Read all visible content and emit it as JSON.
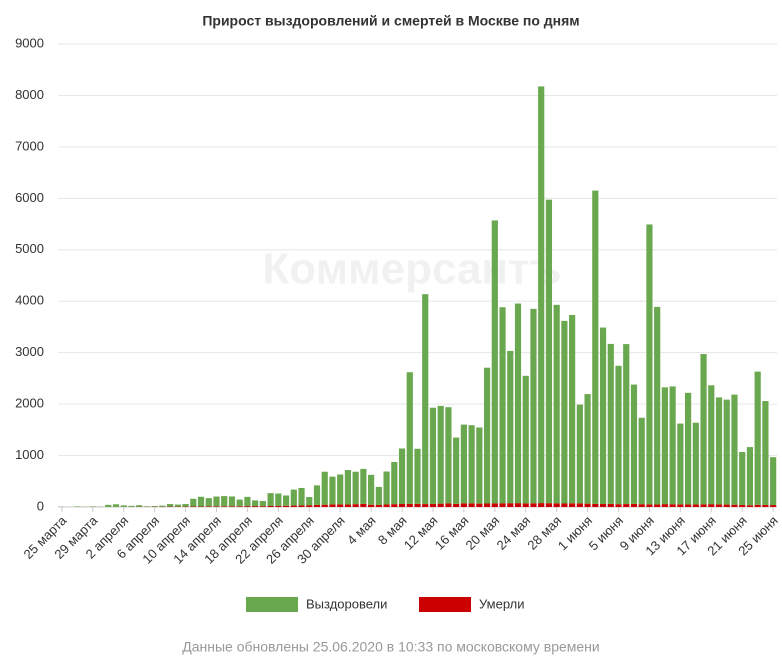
{
  "chart_data": {
    "type": "stacked_bar",
    "title": "Прирост выздоровлений и смертей в Москве по дням",
    "watermark": "Коммерсантъ",
    "note": "Данные обновлены 25.06.2020 в 10:33 по московскому времени",
    "categories": [
      "25 марта",
      null,
      null,
      null,
      "29 марта",
      null,
      null,
      null,
      "2 апреля",
      null,
      null,
      null,
      "6 апреля",
      null,
      null,
      null,
      "10 апреля",
      null,
      null,
      null,
      "14 апреля",
      null,
      null,
      null,
      "18 апреля",
      null,
      null,
      null,
      "22 апреля",
      null,
      null,
      null,
      "26 апреля",
      null,
      null,
      null,
      "30 апреля",
      null,
      null,
      null,
      "4 мая",
      null,
      null,
      null,
      "8 мая",
      null,
      null,
      null,
      "12 мая",
      null,
      null,
      null,
      "16 мая",
      null,
      null,
      null,
      "20 мая",
      null,
      null,
      null,
      "24 мая",
      null,
      null,
      null,
      "28 мая",
      null,
      null,
      null,
      "1 июня",
      null,
      null,
      null,
      "5 июня",
      null,
      null,
      null,
      "9 июня",
      null,
      null,
      null,
      "13 июня",
      null,
      null,
      null,
      "17 июня",
      null,
      null,
      null,
      "21 июня",
      null,
      null,
      null,
      "25 июня"
    ],
    "series": [
      {
        "name": "Выздоровели",
        "color": "#6aa84f",
        "values": [
          5,
          0,
          10,
          5,
          10,
          5,
          40,
          50,
          30,
          20,
          30,
          10,
          15,
          20,
          50,
          40,
          50,
          150,
          190,
          160,
          190,
          200,
          190,
          130,
          180,
          110,
          100,
          250,
          240,
          200,
          310,
          340,
          160,
          380,
          640,
          540,
          580,
          670,
          630,
          680,
          580,
          350,
          640,
          820,
          1080,
          2560,
          1070,
          4080,
          1870,
          1900,
          1870,
          1290,
          1530,
          1520,
          1480,
          2640,
          5500,
          3810,
          2960,
          3880,
          2480,
          3780,
          8100,
          5900,
          3860,
          3550,
          3660,
          1920,
          2130,
          6090,
          3430,
          3110,
          2690,
          3110,
          2320,
          1680,
          5440,
          3840,
          2270,
          2290,
          1570,
          2170,
          1590,
          2920,
          2310,
          2080,
          2040,
          2140,
          1030,
          1130,
          2590,
          2020,
          930
        ]
      },
      {
        "name": "Умерли",
        "color": "#cc0000",
        "values": [
          0,
          0,
          1,
          1,
          2,
          1,
          2,
          3,
          2,
          3,
          5,
          4,
          5,
          6,
          8,
          7,
          8,
          10,
          9,
          12,
          13,
          12,
          15,
          14,
          17,
          18,
          16,
          20,
          22,
          24,
          28,
          30,
          35,
          40,
          45,
          50,
          52,
          48,
          55,
          60,
          45,
          40,
          50,
          55,
          58,
          60,
          62,
          57,
          60,
          65,
          70,
          60,
          72,
          70,
          66,
          68,
          70,
          73,
          74,
          75,
          70,
          72,
          76,
          74,
          70,
          68,
          72,
          70,
          65,
          60,
          58,
          60,
          55,
          57,
          60,
          55,
          52,
          50,
          56,
          54,
          52,
          50,
          48,
          53,
          55,
          50,
          47,
          45,
          40,
          35,
          42,
          40,
          38
        ]
      }
    ],
    "stack_order": [
      1,
      0
    ],
    "ylim": [
      0,
      9000
    ],
    "yticks": [
      0,
      1000,
      2000,
      3000,
      4000,
      5000,
      6000,
      7000,
      8000,
      9000
    ],
    "grid": true,
    "legend": "bottom"
  }
}
